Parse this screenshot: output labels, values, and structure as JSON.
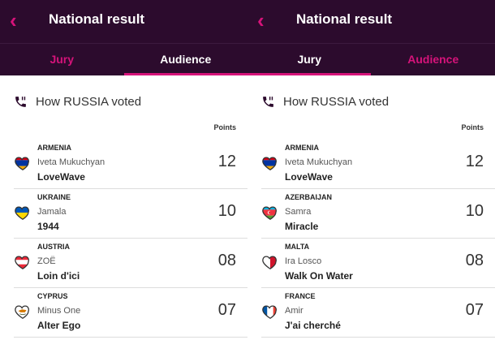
{
  "left": {
    "title": "National result",
    "tabs": [
      "Jury",
      "Audience"
    ],
    "active_tab": 1,
    "heading": "How RUSSIA voted",
    "points_label": "Points",
    "rows": [
      {
        "country": "ARMENIA",
        "artist": "Iveta Mukuchyan",
        "song": "LoveWave",
        "points": "12",
        "flag": "armenia"
      },
      {
        "country": "UKRAINE",
        "artist": "Jamala",
        "song": "1944",
        "points": "10",
        "flag": "ukraine"
      },
      {
        "country": "AUSTRIA",
        "artist": "ZOË",
        "song": "Loin d'ici",
        "points": "08",
        "flag": "austria"
      },
      {
        "country": "CYPRUS",
        "artist": "Minus One",
        "song": "Alter Ego",
        "points": "07",
        "flag": "cyprus"
      }
    ]
  },
  "right": {
    "title": "National result",
    "tabs": [
      "Jury",
      "Audience"
    ],
    "active_tab": 0,
    "heading": "How RUSSIA voted",
    "points_label": "Points",
    "rows": [
      {
        "country": "ARMENIA",
        "artist": "Iveta Mukuchyan",
        "song": "LoveWave",
        "points": "12",
        "flag": "armenia"
      },
      {
        "country": "AZERBAIJAN",
        "artist": "Samra",
        "song": "Miracle",
        "points": "10",
        "flag": "azerbaijan"
      },
      {
        "country": "MALTA",
        "artist": "Ira Losco",
        "song": "Walk On Water",
        "points": "08",
        "flag": "malta"
      },
      {
        "country": "FRANCE",
        "artist": "Amir",
        "song": "J'ai cherché",
        "points": "07",
        "flag": "france"
      }
    ]
  },
  "colors": {
    "header_bg": "#2c0b2d",
    "accent": "#d6137a"
  }
}
